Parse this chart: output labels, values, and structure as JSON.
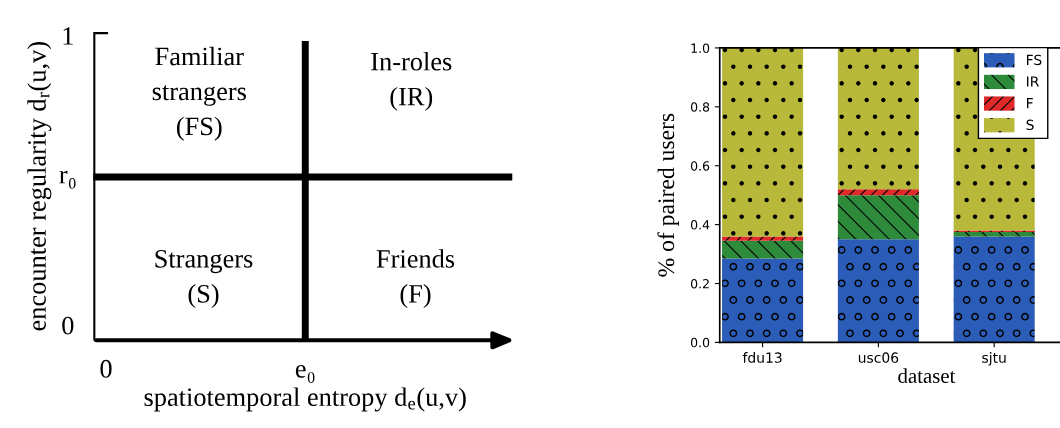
{
  "chart_data": [
    {
      "type": "other",
      "xlabel": "spatiotemporal entropy d$_{e}$(u,v)",
      "ylabel": "encounter regularity d$_{r}$(u,v)",
      "annotations": [
        "Familiar\nstrangers\n(FS)",
        "In-roles\n(IR)",
        "Strangers\n(S)",
        "Friends\n(F)",
        "0",
        "e₀",
        "1",
        "r₀",
        "0"
      ]
    },
    {
      "type": "bar",
      "stacked": true,
      "xlabel": "dataset",
      "ylabel": "% of paired users",
      "categories": [
        "fdu13",
        "usc06",
        "sjtu"
      ],
      "series": [
        {
          "name": "FS",
          "color": "#2a5cb8",
          "values": [
            0.285,
            0.35,
            0.36
          ]
        },
        {
          "name": "IR",
          "color": "#2e8b3c",
          "values": [
            0.06,
            0.15,
            0.015
          ]
        },
        {
          "name": "F",
          "color": "#e02a2a",
          "values": [
            0.015,
            0.02,
            0.005
          ]
        },
        {
          "name": "S",
          "color": "#b8b83a",
          "values": [
            0.64,
            0.48,
            0.62
          ]
        }
      ],
      "ylim": [
        0,
        1
      ],
      "yticks": [
        {
          "value": 0,
          "label": "0.0"
        },
        {
          "value": 0.2,
          "label": "0.2"
        },
        {
          "value": 0.4,
          "label": "0.4"
        },
        {
          "value": 0.6,
          "label": "0.6"
        },
        {
          "value": 0.8,
          "label": "0.8"
        },
        {
          "value": 1,
          "label": "1.0"
        }
      ],
      "legend": "top right",
      "grid": false
    }
  ]
}
